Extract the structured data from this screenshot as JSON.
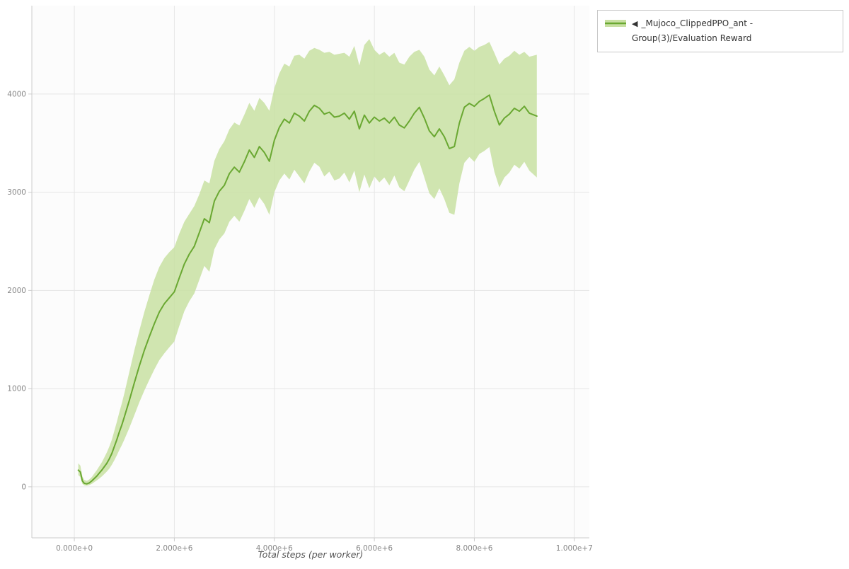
{
  "legend": {
    "marker": "◀",
    "label": "_Mujoco_ClippedPPO_ant - Group(3)/Evaluation Reward"
  },
  "colors": {
    "line": "#6aa832",
    "band": "#c8e0a2",
    "grid": "#e6e6e6",
    "axis": "#cccccc",
    "tick_text": "#888888",
    "axis_title_text": "#555555",
    "legend_border": "#c8c8c8",
    "plot_bg": "#fcfcfc"
  },
  "chart_data": {
    "type": "line",
    "title": "",
    "xlabel": "Total steps (per worker)",
    "ylabel": "",
    "legend_position": "top-right",
    "grid": true,
    "x_range": [
      -850000,
      10300000
    ],
    "y_range": [
      -520,
      4900
    ],
    "x_ticks": {
      "values": [
        0,
        2000000,
        4000000,
        6000000,
        8000000,
        10000000
      ],
      "labels": [
        "0.000e+0",
        "2.000e+6",
        "4.000e+6",
        "6.000e+6",
        "8.000e+6",
        "1.000e+7"
      ]
    },
    "y_ticks": {
      "values": [
        0,
        1000,
        2000,
        3000,
        4000
      ],
      "labels": [
        "0",
        "1000",
        "2000",
        "3000",
        "4000"
      ]
    },
    "series": [
      {
        "name": "_Mujoco_ClippedPPO_ant - Group(3)/Evaluation Reward",
        "color": "#6aa832",
        "band_color": "#c8e0a2",
        "x": [
          80000,
          120000,
          160000,
          200000,
          250000,
          300000,
          350000,
          400000,
          450000,
          500000,
          550000,
          600000,
          650000,
          700000,
          750000,
          800000,
          850000,
          900000,
          950000,
          1000000,
          1100000,
          1200000,
          1300000,
          1400000,
          1500000,
          1600000,
          1700000,
          1800000,
          1900000,
          2000000,
          2100000,
          2200000,
          2300000,
          2400000,
          2500000,
          2600000,
          2700000,
          2800000,
          2900000,
          3000000,
          3100000,
          3200000,
          3300000,
          3400000,
          3500000,
          3600000,
          3700000,
          3800000,
          3900000,
          4000000,
          4100000,
          4200000,
          4300000,
          4400000,
          4500000,
          4600000,
          4700000,
          4800000,
          4900000,
          5000000,
          5100000,
          5200000,
          5300000,
          5400000,
          5500000,
          5600000,
          5700000,
          5800000,
          5900000,
          6000000,
          6100000,
          6200000,
          6300000,
          6400000,
          6500000,
          6600000,
          6700000,
          6800000,
          6900000,
          7000000,
          7100000,
          7200000,
          7300000,
          7400000,
          7500000,
          7600000,
          7700000,
          7800000,
          7900000,
          8000000,
          8100000,
          8200000,
          8300000,
          8400000,
          8500000,
          8600000,
          8700000,
          8800000,
          8900000,
          9000000,
          9100000,
          9250000
        ],
        "mean": [
          170,
          150,
          60,
          35,
          30,
          40,
          60,
          85,
          110,
          140,
          170,
          205,
          240,
          285,
          340,
          410,
          480,
          560,
          630,
          710,
          880,
          1060,
          1230,
          1390,
          1530,
          1660,
          1780,
          1865,
          1925,
          1985,
          2130,
          2270,
          2370,
          2450,
          2590,
          2730,
          2690,
          2910,
          3010,
          3070,
          3190,
          3255,
          3205,
          3310,
          3430,
          3355,
          3465,
          3405,
          3315,
          3530,
          3660,
          3745,
          3705,
          3805,
          3775,
          3725,
          3825,
          3885,
          3855,
          3795,
          3815,
          3765,
          3775,
          3805,
          3745,
          3825,
          3645,
          3785,
          3705,
          3765,
          3725,
          3755,
          3705,
          3765,
          3685,
          3655,
          3725,
          3805,
          3865,
          3755,
          3625,
          3565,
          3645,
          3565,
          3445,
          3465,
          3705,
          3865,
          3905,
          3875,
          3925,
          3955,
          3990,
          3825,
          3685,
          3755,
          3795,
          3855,
          3825,
          3875,
          3805,
          3775
        ],
        "lower": [
          120,
          100,
          30,
          15,
          12,
          18,
          30,
          48,
          65,
          85,
          105,
          130,
          155,
          185,
          225,
          270,
          320,
          375,
          425,
          480,
          600,
          730,
          860,
          980,
          1090,
          1195,
          1290,
          1360,
          1420,
          1480,
          1640,
          1790,
          1890,
          1970,
          2110,
          2250,
          2190,
          2420,
          2520,
          2580,
          2700,
          2760,
          2700,
          2810,
          2930,
          2840,
          2950,
          2880,
          2770,
          3000,
          3120,
          3190,
          3130,
          3230,
          3160,
          3090,
          3210,
          3300,
          3260,
          3160,
          3210,
          3120,
          3140,
          3200,
          3100,
          3220,
          3000,
          3180,
          3040,
          3160,
          3100,
          3150,
          3070,
          3170,
          3050,
          3010,
          3120,
          3230,
          3310,
          3150,
          2990,
          2930,
          3040,
          2930,
          2790,
          2770,
          3090,
          3300,
          3360,
          3310,
          3390,
          3420,
          3460,
          3210,
          3050,
          3150,
          3200,
          3280,
          3240,
          3310,
          3220,
          3150
        ],
        "upper": [
          240,
          215,
          105,
          70,
          60,
          75,
          100,
          135,
          170,
          210,
          250,
          300,
          350,
          410,
          480,
          570,
          660,
          760,
          850,
          950,
          1170,
          1390,
          1590,
          1780,
          1950,
          2110,
          2240,
          2330,
          2390,
          2440,
          2580,
          2700,
          2780,
          2860,
          2980,
          3120,
          3090,
          3320,
          3440,
          3520,
          3640,
          3710,
          3680,
          3790,
          3910,
          3830,
          3960,
          3910,
          3830,
          4060,
          4210,
          4310,
          4280,
          4390,
          4400,
          4360,
          4440,
          4470,
          4450,
          4420,
          4430,
          4400,
          4410,
          4420,
          4380,
          4490,
          4290,
          4500,
          4560,
          4450,
          4400,
          4430,
          4380,
          4420,
          4320,
          4300,
          4380,
          4430,
          4450,
          4380,
          4250,
          4190,
          4280,
          4190,
          4090,
          4150,
          4320,
          4440,
          4480,
          4440,
          4480,
          4500,
          4530,
          4420,
          4300,
          4360,
          4390,
          4440,
          4400,
          4430,
          4380,
          4400
        ]
      }
    ]
  }
}
